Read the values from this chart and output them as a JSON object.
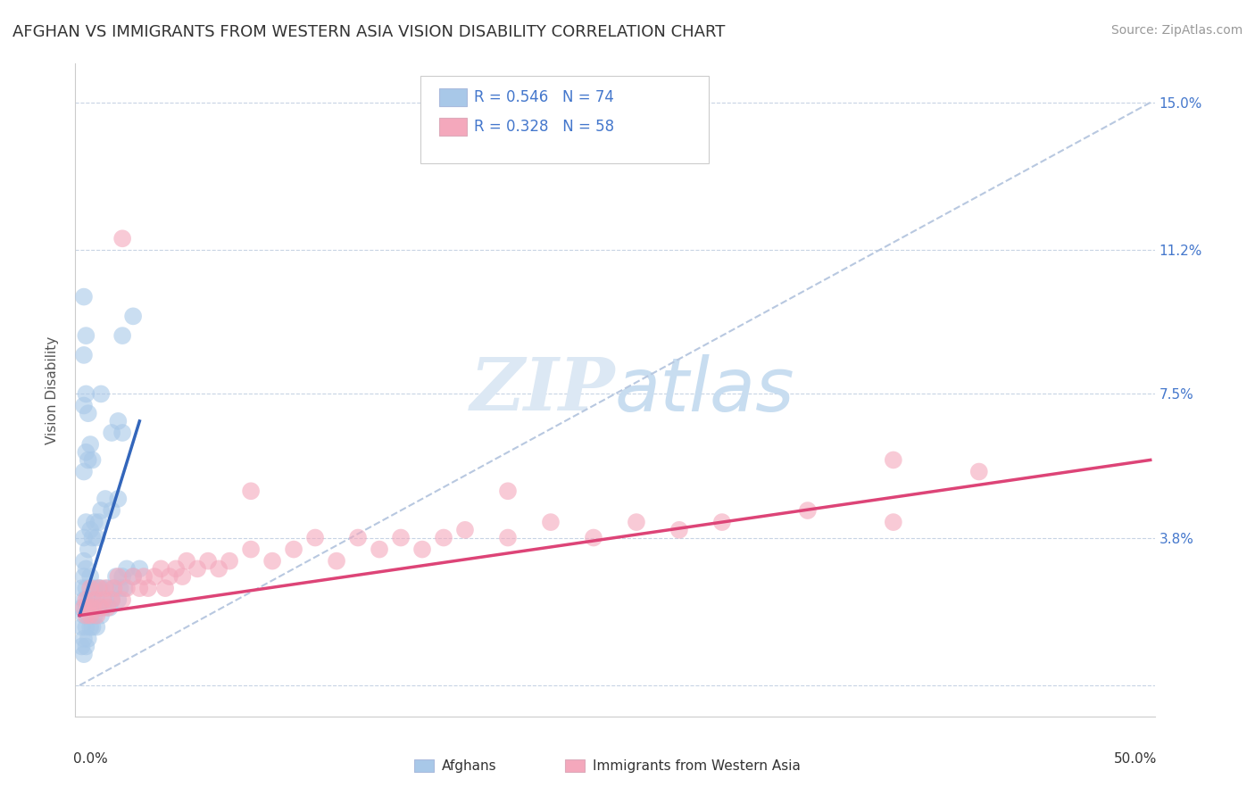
{
  "title": "AFGHAN VS IMMIGRANTS FROM WESTERN ASIA VISION DISABILITY CORRELATION CHART",
  "source": "Source: ZipAtlas.com",
  "ylabel": "Vision Disability",
  "y_ticks": [
    0.0,
    0.038,
    0.075,
    0.112,
    0.15
  ],
  "y_tick_labels": [
    "",
    "3.8%",
    "7.5%",
    "11.2%",
    "15.0%"
  ],
  "x_lim": [
    -0.002,
    0.502
  ],
  "y_lim": [
    -0.008,
    0.16
  ],
  "legend_afghans_r": "0.546",
  "legend_afghans_n": "74",
  "legend_western_r": "0.328",
  "legend_western_n": "58",
  "afghans_color": "#a8c8e8",
  "western_color": "#f4a8bc",
  "afghans_line_color": "#3366bb",
  "western_line_color": "#dd4477",
  "diagonal_color": "#b8c8e0",
  "watermark_color": "#dce8f4",
  "background_color": "#ffffff",
  "afghans_scatter": [
    [
      0.001,
      0.01
    ],
    [
      0.001,
      0.015
    ],
    [
      0.001,
      0.02
    ],
    [
      0.001,
      0.025
    ],
    [
      0.002,
      0.008
    ],
    [
      0.002,
      0.012
    ],
    [
      0.002,
      0.018
    ],
    [
      0.002,
      0.022
    ],
    [
      0.002,
      0.028
    ],
    [
      0.002,
      0.032
    ],
    [
      0.003,
      0.01
    ],
    [
      0.003,
      0.015
    ],
    [
      0.003,
      0.02
    ],
    [
      0.003,
      0.025
    ],
    [
      0.003,
      0.03
    ],
    [
      0.004,
      0.012
    ],
    [
      0.004,
      0.018
    ],
    [
      0.004,
      0.022
    ],
    [
      0.005,
      0.015
    ],
    [
      0.005,
      0.02
    ],
    [
      0.005,
      0.028
    ],
    [
      0.006,
      0.015
    ],
    [
      0.006,
      0.022
    ],
    [
      0.007,
      0.018
    ],
    [
      0.007,
      0.025
    ],
    [
      0.008,
      0.015
    ],
    [
      0.008,
      0.022
    ],
    [
      0.009,
      0.02
    ],
    [
      0.009,
      0.025
    ],
    [
      0.01,
      0.018
    ],
    [
      0.01,
      0.025
    ],
    [
      0.011,
      0.02
    ],
    [
      0.012,
      0.022
    ],
    [
      0.013,
      0.025
    ],
    [
      0.014,
      0.02
    ],
    [
      0.015,
      0.022
    ],
    [
      0.016,
      0.025
    ],
    [
      0.017,
      0.028
    ],
    [
      0.018,
      0.022
    ],
    [
      0.019,
      0.025
    ],
    [
      0.02,
      0.028
    ],
    [
      0.021,
      0.025
    ],
    [
      0.022,
      0.03
    ],
    [
      0.025,
      0.028
    ],
    [
      0.028,
      0.03
    ],
    [
      0.002,
      0.038
    ],
    [
      0.003,
      0.042
    ],
    [
      0.004,
      0.035
    ],
    [
      0.005,
      0.04
    ],
    [
      0.006,
      0.038
    ],
    [
      0.007,
      0.042
    ],
    [
      0.008,
      0.038
    ],
    [
      0.009,
      0.042
    ],
    [
      0.01,
      0.045
    ],
    [
      0.012,
      0.048
    ],
    [
      0.015,
      0.045
    ],
    [
      0.018,
      0.048
    ],
    [
      0.002,
      0.055
    ],
    [
      0.003,
      0.06
    ],
    [
      0.004,
      0.058
    ],
    [
      0.005,
      0.062
    ],
    [
      0.006,
      0.058
    ],
    [
      0.015,
      0.065
    ],
    [
      0.018,
      0.068
    ],
    [
      0.02,
      0.065
    ],
    [
      0.002,
      0.072
    ],
    [
      0.003,
      0.075
    ],
    [
      0.004,
      0.07
    ],
    [
      0.01,
      0.075
    ],
    [
      0.002,
      0.085
    ],
    [
      0.003,
      0.09
    ],
    [
      0.02,
      0.09
    ],
    [
      0.002,
      0.1
    ],
    [
      0.025,
      0.095
    ]
  ],
  "western_scatter": [
    [
      0.002,
      0.02
    ],
    [
      0.003,
      0.018
    ],
    [
      0.003,
      0.022
    ],
    [
      0.004,
      0.02
    ],
    [
      0.005,
      0.018
    ],
    [
      0.005,
      0.025
    ],
    [
      0.006,
      0.02
    ],
    [
      0.007,
      0.022
    ],
    [
      0.008,
      0.018
    ],
    [
      0.009,
      0.025
    ],
    [
      0.01,
      0.02
    ],
    [
      0.011,
      0.022
    ],
    [
      0.012,
      0.025
    ],
    [
      0.013,
      0.02
    ],
    [
      0.015,
      0.022
    ],
    [
      0.016,
      0.025
    ],
    [
      0.018,
      0.028
    ],
    [
      0.02,
      0.022
    ],
    [
      0.022,
      0.025
    ],
    [
      0.025,
      0.028
    ],
    [
      0.028,
      0.025
    ],
    [
      0.03,
      0.028
    ],
    [
      0.032,
      0.025
    ],
    [
      0.035,
      0.028
    ],
    [
      0.038,
      0.03
    ],
    [
      0.04,
      0.025
    ],
    [
      0.042,
      0.028
    ],
    [
      0.045,
      0.03
    ],
    [
      0.048,
      0.028
    ],
    [
      0.05,
      0.032
    ],
    [
      0.055,
      0.03
    ],
    [
      0.06,
      0.032
    ],
    [
      0.065,
      0.03
    ],
    [
      0.07,
      0.032
    ],
    [
      0.08,
      0.035
    ],
    [
      0.09,
      0.032
    ],
    [
      0.1,
      0.035
    ],
    [
      0.11,
      0.038
    ],
    [
      0.12,
      0.032
    ],
    [
      0.13,
      0.038
    ],
    [
      0.14,
      0.035
    ],
    [
      0.15,
      0.038
    ],
    [
      0.16,
      0.035
    ],
    [
      0.17,
      0.038
    ],
    [
      0.18,
      0.04
    ],
    [
      0.2,
      0.038
    ],
    [
      0.22,
      0.042
    ],
    [
      0.24,
      0.038
    ],
    [
      0.26,
      0.042
    ],
    [
      0.28,
      0.04
    ],
    [
      0.3,
      0.042
    ],
    [
      0.34,
      0.045
    ],
    [
      0.38,
      0.042
    ],
    [
      0.02,
      0.115
    ],
    [
      0.38,
      0.058
    ],
    [
      0.42,
      0.055
    ],
    [
      0.2,
      0.05
    ],
    [
      0.08,
      0.05
    ]
  ],
  "afghans_line_x": [
    0.0,
    0.028
  ],
  "afghans_line_y": [
    0.018,
    0.068
  ],
  "western_line_x": [
    0.0,
    0.5
  ],
  "western_line_y": [
    0.018,
    0.058
  ],
  "diagonal_line": [
    [
      0.0,
      0.0
    ],
    [
      0.5,
      0.15
    ]
  ],
  "title_fontsize": 13,
  "axis_label_fontsize": 11,
  "tick_fontsize": 11,
  "legend_fontsize": 12,
  "watermark_fontsize": 60,
  "source_fontsize": 10
}
